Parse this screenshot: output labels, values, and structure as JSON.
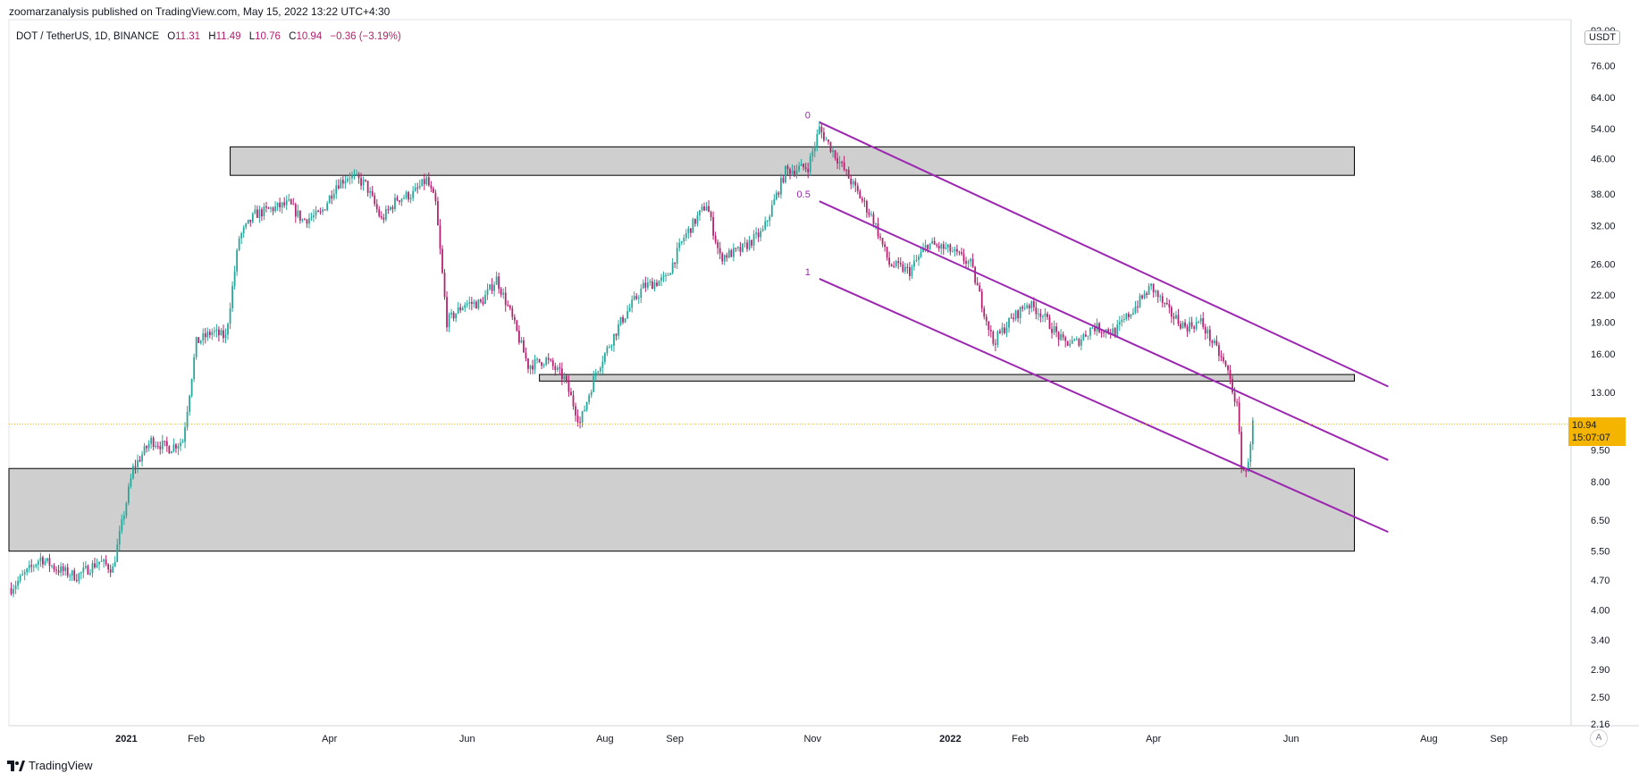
{
  "header": {
    "published_text": "zoomarzanalysis published on TradingView.com, May 15, 2022 13:22 UTC+4:30"
  },
  "symbol": {
    "name": "DOT / TetherUS, 1D, BINANCE",
    "open_label": "O",
    "open": "11.31",
    "high_label": "H",
    "high": "11.49",
    "low_label": "L",
    "low": "10.76",
    "close_label": "C",
    "close": "10.94",
    "change": "−0.36 (−3.19%)"
  },
  "price_badge": {
    "price": "10.94",
    "countdown": "15:07:07"
  },
  "currency_label": "USDT",
  "auto_button": "A",
  "footer": {
    "brand": "TradingView"
  },
  "colors": {
    "up": "#26a69a",
    "down": "#b1216d",
    "channel": "#9c27b0",
    "zone_fill": "#cfcfcf",
    "badge": "#f4b400"
  },
  "chart_data": {
    "type": "candlestick",
    "y_scale": "log",
    "ylim": [
      2.0,
      92.0
    ],
    "y_ticks": [
      "92.00",
      "76.00",
      "64.00",
      "54.00",
      "46.00",
      "38.00",
      "32.00",
      "26.00",
      "22.00",
      "19.00",
      "16.00",
      "13.00",
      "9.50",
      "8.00",
      "6.50",
      "5.50",
      "4.70",
      "4.00",
      "3.40",
      "2.90",
      "2.50",
      "2.16"
    ],
    "y_tick_values": [
      92,
      76,
      64,
      54,
      46,
      38,
      32,
      26,
      22,
      19,
      16,
      13,
      9.5,
      8,
      6.5,
      5.5,
      4.7,
      4,
      3.4,
      2.9,
      2.5,
      2.16
    ],
    "x_ticks": [
      "2021",
      "Feb",
      "Apr",
      "Jun",
      "Aug",
      "Sep",
      "Nov",
      "2022",
      "Feb",
      "Apr",
      "Jun",
      "Aug",
      "Sep"
    ],
    "x_tick_dates": [
      "2021-01-01",
      "2021-02-01",
      "2021-04-01",
      "2021-06-01",
      "2021-08-01",
      "2021-09-01",
      "2021-11-01",
      "2022-01-01",
      "2022-02-01",
      "2022-04-01",
      "2022-06-01",
      "2022-08-01",
      "2022-09-01"
    ],
    "xlim": [
      "2020-11-10",
      "2022-10-03"
    ],
    "last_price": 10.94,
    "price_path": [
      [
        "2020-11-11",
        4.5
      ],
      [
        "2020-11-24",
        5.3
      ],
      [
        "2020-12-01",
        5.0
      ],
      [
        "2020-12-10",
        4.8
      ],
      [
        "2020-12-20",
        5.2
      ],
      [
        "2020-12-26",
        5.0
      ],
      [
        "2021-01-04",
        8.6
      ],
      [
        "2021-01-12",
        10.0
      ],
      [
        "2021-01-20",
        9.6
      ],
      [
        "2021-01-26",
        10.0
      ],
      [
        "2021-02-01",
        17.0
      ],
      [
        "2021-02-08",
        18.0
      ],
      [
        "2021-02-14",
        17.5
      ],
      [
        "2021-02-20",
        30.0
      ],
      [
        "2021-02-27",
        34.0
      ],
      [
        "2021-03-06",
        35.0
      ],
      [
        "2021-03-14",
        36.0
      ],
      [
        "2021-03-20",
        33.0
      ],
      [
        "2021-03-28",
        34.0
      ],
      [
        "2021-04-04",
        40.0
      ],
      [
        "2021-04-10",
        42.0
      ],
      [
        "2021-04-17",
        40.0
      ],
      [
        "2021-04-24",
        33.0
      ],
      [
        "2021-05-01",
        37.0
      ],
      [
        "2021-05-08",
        38.0
      ],
      [
        "2021-05-14",
        41.0
      ],
      [
        "2021-05-18",
        36.0
      ],
      [
        "2021-05-23",
        19.0
      ],
      [
        "2021-05-31",
        21.0
      ],
      [
        "2021-06-07",
        21.0
      ],
      [
        "2021-06-14",
        24.0
      ],
      [
        "2021-06-20",
        20.0
      ],
      [
        "2021-06-28",
        15.0
      ],
      [
        "2021-07-06",
        15.5
      ],
      [
        "2021-07-14",
        14.0
      ],
      [
        "2021-07-21",
        11.0
      ],
      [
        "2021-07-28",
        14.5
      ],
      [
        "2021-08-08",
        19.0
      ],
      [
        "2021-08-18",
        23.0
      ],
      [
        "2021-08-28",
        24.0
      ],
      [
        "2021-09-05",
        30.0
      ],
      [
        "2021-09-15",
        36.0
      ],
      [
        "2021-09-21",
        27.0
      ],
      [
        "2021-09-30",
        28.0
      ],
      [
        "2021-10-10",
        31.0
      ],
      [
        "2021-10-20",
        43.0
      ],
      [
        "2021-10-30",
        44.0
      ],
      [
        "2021-11-04",
        54.0
      ],
      [
        "2021-11-12",
        46.0
      ],
      [
        "2021-11-20",
        39.0
      ],
      [
        "2021-11-28",
        33.0
      ],
      [
        "2021-12-05",
        26.0
      ],
      [
        "2021-12-14",
        25.0
      ],
      [
        "2021-12-22",
        29.0
      ],
      [
        "2022-01-01",
        28.0
      ],
      [
        "2022-01-10",
        26.0
      ],
      [
        "2022-01-20",
        17.0
      ],
      [
        "2022-01-27",
        19.0
      ],
      [
        "2022-02-04",
        21.0
      ],
      [
        "2022-02-10",
        20.0
      ],
      [
        "2022-02-20",
        17.0
      ],
      [
        "2022-02-26",
        17.0
      ],
      [
        "2022-03-05",
        18.5
      ],
      [
        "2022-03-15",
        18.0
      ],
      [
        "2022-03-25",
        21.0
      ],
      [
        "2022-03-31",
        23.0
      ],
      [
        "2022-04-08",
        20.0
      ],
      [
        "2022-04-15",
        18.5
      ],
      [
        "2022-04-22",
        19.0
      ],
      [
        "2022-04-30",
        16.0
      ],
      [
        "2022-05-04",
        14.5
      ],
      [
        "2022-05-08",
        12.0
      ],
      [
        "2022-05-10",
        8.8
      ],
      [
        "2022-05-12",
        8.3
      ],
      [
        "2022-05-15",
        10.94
      ]
    ],
    "zones": [
      {
        "type": "resistance-zone",
        "from": "2021-02-16",
        "to": "2022-06-29",
        "low": 42.0,
        "high": 49.0
      },
      {
        "type": "support-line-zone",
        "from": "2021-07-03",
        "to": "2022-06-29",
        "low": 13.8,
        "high": 14.3
      },
      {
        "type": "demand-zone",
        "from": "2020-11-10",
        "to": "2022-06-29",
        "low": 5.5,
        "high": 8.6
      }
    ],
    "channel": {
      "levels": [
        "0",
        "0.5",
        "1"
      ],
      "lines": [
        {
          "level": "0",
          "start": [
            "2021-11-04",
            56.0
          ],
          "end": [
            "2022-07-14",
            13.4
          ]
        },
        {
          "level": "0.5",
          "start": [
            "2021-11-04",
            36.5
          ],
          "end": [
            "2022-07-14",
            9.0
          ]
        },
        {
          "level": "1",
          "start": [
            "2021-11-04",
            24.0
          ],
          "end": [
            "2022-07-14",
            6.1
          ]
        }
      ]
    }
  }
}
